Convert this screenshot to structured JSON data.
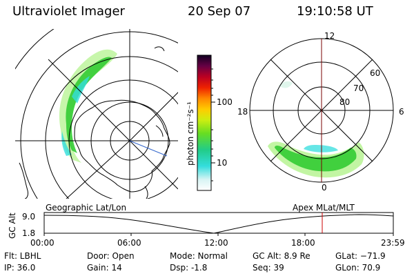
{
  "header": {
    "title": "Ultraviolet Imager",
    "date": "20 Sep 07",
    "time": "19:10:58 UT"
  },
  "colorbar": {
    "unit_label": "photon cm⁻²s⁻¹",
    "ticks": [
      "100",
      "10"
    ]
  },
  "apex_map": {
    "mlt_labels": {
      "top": "12",
      "left": "18",
      "right": "6",
      "bottom": "0"
    },
    "lat_labels": [
      "60",
      "70",
      "80"
    ]
  },
  "timeline": {
    "left_title": "Geographic Lat/Lon",
    "right_title": "Apex  MLat/MLT",
    "axis_title": "GC Alt",
    "y_ticks": [
      "9.0",
      "1.8"
    ],
    "x_ticks": [
      "00:00",
      "06:00",
      "12:00",
      "18:00",
      "23:59"
    ],
    "marker_time": "19:10:58"
  },
  "footer": {
    "flt": "Flt: LBHL",
    "ip": "IP: 36.0",
    "door": "Door: Open",
    "gain": "Gain: 14",
    "mode": "Mode: Normal",
    "dsp": "Dsp:    -1.8",
    "gcalt": "GC Alt: 8.9 Re",
    "seq": "Seq: 39",
    "glat": "GLat: −71.9",
    "glon": "GLon:  70.9"
  },
  "colors": {
    "aurora_green": "#33cc33",
    "aurora_light": "#99ee66",
    "aurora_cyan": "#33dddd",
    "marker": "#cc0000",
    "nightside_line": "#3366cc"
  }
}
